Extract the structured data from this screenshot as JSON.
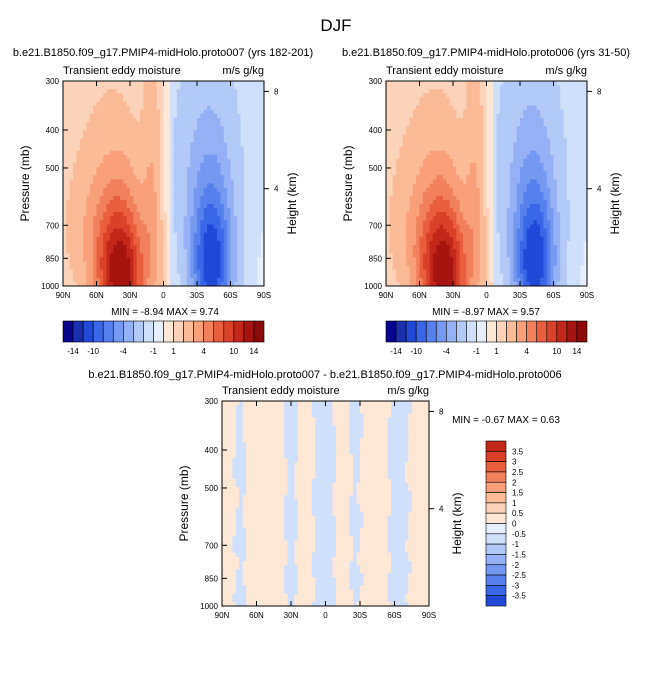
{
  "figure_title": "DJF",
  "palette": {
    "neg": [
      "#08048c",
      "#1a2fae",
      "#1f49d6",
      "#3a67e8",
      "#5580ee",
      "#7399f0",
      "#93b1f4",
      "#b3c9f7",
      "#d0dffa",
      "#e7eefc"
    ],
    "pos": [
      "#fde8d8",
      "#fcd3b8",
      "#fbbb96",
      "#f7a07a",
      "#f2805c",
      "#e95f3e",
      "#d94128",
      "#c2281a",
      "#a6140f",
      "#8c0a0a"
    ],
    "axis": "#000000"
  },
  "chart_data": [
    {
      "type": "contour",
      "title": "b.e21.B1850.f09_g17.PMIP4-midHolo.proto007 (yrs 182-201)",
      "left_label": "Transient eddy moisture",
      "right_label": "m/s g/kg",
      "stats": "MIN = -8.94   MAX =  9.74",
      "ylabel": "Pressure (mb)",
      "ylabel_right": "Height (km)",
      "x_ticks": [
        "90N",
        "60N",
        "30N",
        "0",
        "30S",
        "60S",
        "90S"
      ],
      "x_values": [
        90,
        60,
        30,
        0,
        -30,
        -60,
        -90
      ],
      "y_ticks": [
        "300",
        "400",
        "500",
        "700",
        "850",
        "1000"
      ],
      "y_values": [
        300,
        400,
        500,
        700,
        850,
        1000
      ],
      "height_ticks": [
        "8",
        "4"
      ],
      "height_values": [
        8,
        4
      ],
      "zero_line_lat": -5,
      "min": -8.94,
      "max": 9.74,
      "features": [
        {
          "lat": 38,
          "p": 940,
          "amp": 9.74,
          "sx": 15,
          "sp": 240
        },
        {
          "lat": 55,
          "p": 700,
          "amp": 2.2,
          "sx": 22,
          "sp": 230
        },
        {
          "lat": 10,
          "p": 600,
          "amp": 2.0,
          "sx": 6,
          "sp": 300
        },
        {
          "lat": -43,
          "p": 880,
          "amp": -8.94,
          "sx": 13,
          "sp": 230
        },
        {
          "lat": -38,
          "p": 500,
          "amp": -2.0,
          "sx": 22,
          "sp": 220
        }
      ]
    },
    {
      "type": "contour",
      "title": "b.e21.B1850.f09_g17.PMIP4-midHolo.proto006 (yrs 31-50)",
      "left_label": "Transient eddy moisture",
      "right_label": "m/s g/kg",
      "stats": "MIN = -8.97   MAX =  9.57",
      "ylabel": "Pressure (mb)",
      "ylabel_right": "Height (km)",
      "x_ticks": [
        "90N",
        "60N",
        "30N",
        "0",
        "30S",
        "60S",
        "90S"
      ],
      "x_values": [
        90,
        60,
        30,
        0,
        -30,
        -60,
        -90
      ],
      "y_ticks": [
        "300",
        "400",
        "500",
        "700",
        "850",
        "1000"
      ],
      "y_values": [
        300,
        400,
        500,
        700,
        850,
        1000
      ],
      "height_ticks": [
        "8",
        "4"
      ],
      "height_values": [
        8,
        4
      ],
      "zero_line_lat": -5,
      "min": -8.97,
      "max": 9.57,
      "features": [
        {
          "lat": 38,
          "p": 940,
          "amp": 9.57,
          "sx": 15,
          "sp": 240
        },
        {
          "lat": 55,
          "p": 700,
          "amp": 2.2,
          "sx": 22,
          "sp": 230
        },
        {
          "lat": 10,
          "p": 600,
          "amp": 2.0,
          "sx": 6,
          "sp": 300
        },
        {
          "lat": -43,
          "p": 880,
          "amp": -8.97,
          "sx": 13,
          "sp": 230
        },
        {
          "lat": -38,
          "p": 500,
          "amp": -2.0,
          "sx": 22,
          "sp": 220
        }
      ]
    },
    {
      "type": "contour",
      "title": "b.e21.B1850.f09_g17.PMIP4-midHolo.proto007 - b.e21.B1850.f09_g17.PMIP4-midHolo.proto006",
      "left_label": "Transient eddy moisture",
      "right_label": "m/s g/kg",
      "stats": "MIN = -0.67   MAX =  0.63",
      "ylabel": "Pressure (mb)",
      "ylabel_right": "Height (km)",
      "x_ticks": [
        "90N",
        "60N",
        "30N",
        "0",
        "30S",
        "60S",
        "90S"
      ],
      "x_values": [
        90,
        60,
        30,
        0,
        -30,
        -60,
        -90
      ],
      "y_ticks": [
        "300",
        "400",
        "500",
        "700",
        "850",
        "1000"
      ],
      "y_values": [
        300,
        400,
        500,
        700,
        850,
        1000
      ],
      "height_ticks": [
        "8",
        "4"
      ],
      "height_values": [
        8,
        4
      ],
      "min": -0.67,
      "max": 0.63,
      "negative_bands_lat": [
        [
          78,
          70
        ],
        [
          35,
          25
        ],
        [
          10,
          -8
        ],
        [
          -22,
          -30
        ],
        [
          -55,
          -72
        ]
      ]
    }
  ],
  "colorbar_top": {
    "labels": [
      "-14",
      "-10",
      "-4",
      "-1",
      "1",
      "4",
      "10",
      "14"
    ]
  },
  "colorbar_diff": {
    "labels": [
      "3.5",
      "3",
      "2.5",
      "2",
      "1.5",
      "1",
      "0.5",
      "0",
      "-0.5",
      "-1",
      "-1.5",
      "-2",
      "-2.5",
      "-3",
      "-3.5"
    ]
  }
}
